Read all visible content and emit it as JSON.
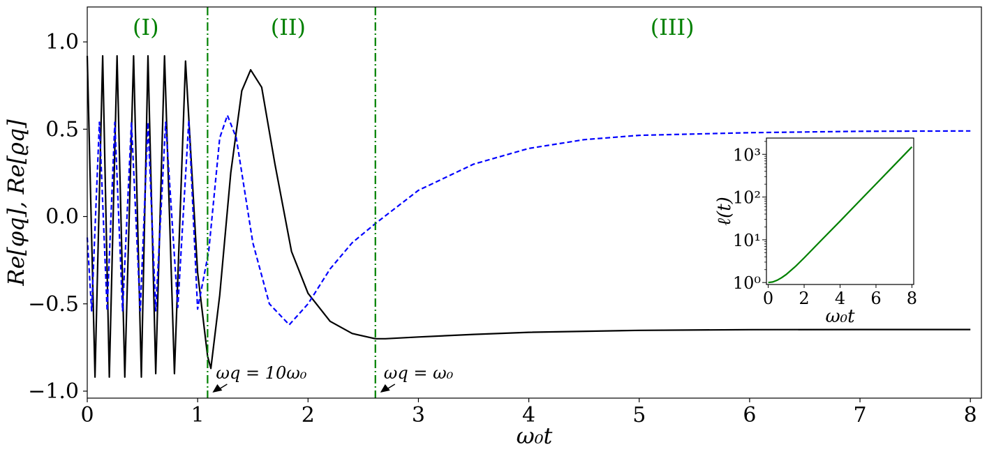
{
  "chart_data": [
    {
      "type": "line",
      "xlabel": "ω₀t",
      "ylabel": "Re[φq], Re[ϱq]",
      "xlim": [
        0,
        8.1
      ],
      "ylim": [
        -1.04,
        1.2
      ],
      "x_ticks": [
        "0",
        "1",
        "2",
        "3",
        "4",
        "5",
        "6",
        "7",
        "8"
      ],
      "y_ticks": [
        "−1.0",
        "−0.5",
        "0.0",
        "0.5",
        "1.0"
      ],
      "grid": false,
      "series": [
        {
          "style": "solid",
          "color": "#000000",
          "points": [
            [
              0.0,
              0.92
            ],
            [
              0.07,
              -0.92
            ],
            [
              0.14,
              0.92
            ],
            [
              0.2,
              -0.92
            ],
            [
              0.27,
              0.92
            ],
            [
              0.34,
              -0.92
            ],
            [
              0.42,
              0.92
            ],
            [
              0.49,
              -0.92
            ],
            [
              0.55,
              0.92
            ],
            [
              0.62,
              -0.9
            ],
            [
              0.7,
              0.92
            ],
            [
              0.79,
              -0.9
            ],
            [
              0.89,
              0.89
            ],
            [
              1.0,
              -0.32
            ],
            [
              1.09,
              -0.8
            ],
            [
              1.12,
              -0.87
            ],
            [
              1.2,
              -0.45
            ],
            [
              1.3,
              0.25
            ],
            [
              1.4,
              0.72
            ],
            [
              1.48,
              0.84
            ],
            [
              1.58,
              0.74
            ],
            [
              1.7,
              0.3
            ],
            [
              1.85,
              -0.2
            ],
            [
              2.0,
              -0.44
            ],
            [
              2.2,
              -0.6
            ],
            [
              2.4,
              -0.67
            ],
            [
              2.61,
              -0.7
            ],
            [
              2.7,
              -0.7
            ],
            [
              3.0,
              -0.69
            ],
            [
              3.5,
              -0.675
            ],
            [
              4.0,
              -0.663
            ],
            [
              5.0,
              -0.652
            ],
            [
              6.0,
              -0.648
            ],
            [
              7.0,
              -0.647
            ],
            [
              8.0,
              -0.647
            ]
          ]
        },
        {
          "style": "dashed",
          "color": "#0000ff",
          "points": [
            [
              0.0,
              -0.12
            ],
            [
              0.04,
              -0.54
            ],
            [
              0.11,
              0.54
            ],
            [
              0.18,
              -0.54
            ],
            [
              0.25,
              0.54
            ],
            [
              0.32,
              -0.54
            ],
            [
              0.4,
              0.54
            ],
            [
              0.48,
              -0.54
            ],
            [
              0.55,
              0.54
            ],
            [
              0.62,
              -0.54
            ],
            [
              0.71,
              0.54
            ],
            [
              0.82,
              -0.52
            ],
            [
              0.92,
              0.55
            ],
            [
              1.0,
              -0.53
            ],
            [
              1.1,
              -0.2
            ],
            [
              1.2,
              0.45
            ],
            [
              1.27,
              0.58
            ],
            [
              1.35,
              0.45
            ],
            [
              1.5,
              -0.15
            ],
            [
              1.65,
              -0.5
            ],
            [
              1.83,
              -0.62
            ],
            [
              2.0,
              -0.5
            ],
            [
              2.2,
              -0.3
            ],
            [
              2.4,
              -0.15
            ],
            [
              2.61,
              -0.04
            ],
            [
              3.0,
              0.15
            ],
            [
              3.5,
              0.3
            ],
            [
              4.0,
              0.39
            ],
            [
              4.5,
              0.44
            ],
            [
              5.0,
              0.465
            ],
            [
              6.0,
              0.48
            ],
            [
              7.0,
              0.488
            ],
            [
              8.0,
              0.49
            ]
          ]
        }
      ],
      "vlines": [
        1.09,
        2.61
      ],
      "regions": [
        {
          "label": "(I)",
          "x": 0.53
        },
        {
          "label": "(II)",
          "x": 1.82
        },
        {
          "label": "(III)",
          "x": 5.3
        }
      ],
      "annotations": [
        {
          "text": "ωq = 10ω₀",
          "x": 1.09
        },
        {
          "text": "ωq = ω₀",
          "x": 2.61
        }
      ]
    },
    {
      "type": "line",
      "inset": true,
      "xlabel": "ω₀t",
      "ylabel": "ℓ(t)",
      "yscale": "log",
      "xlim": [
        -0.1,
        8.1
      ],
      "ylim": [
        0.9,
        2400
      ],
      "x_ticks": [
        "0",
        "2",
        "4",
        "6",
        "8"
      ],
      "y_ticks": [
        "10⁰",
        "10¹",
        "10²",
        "10³"
      ],
      "series": [
        {
          "color": "#008000",
          "points": [
            [
              0.0,
              1.0
            ],
            [
              0.25,
              1.03
            ],
            [
              0.5,
              1.13
            ],
            [
              0.75,
              1.3
            ],
            [
              1.0,
              1.54
            ],
            [
              1.5,
              2.35
            ],
            [
              2.0,
              3.76
            ],
            [
              3.0,
              10.2
            ],
            [
              4.0,
              27.3
            ],
            [
              5.0,
              74.2
            ],
            [
              6.0,
              201.7
            ],
            [
              7.0,
              548.3
            ],
            [
              8.0,
              1490.5
            ]
          ]
        }
      ]
    }
  ]
}
